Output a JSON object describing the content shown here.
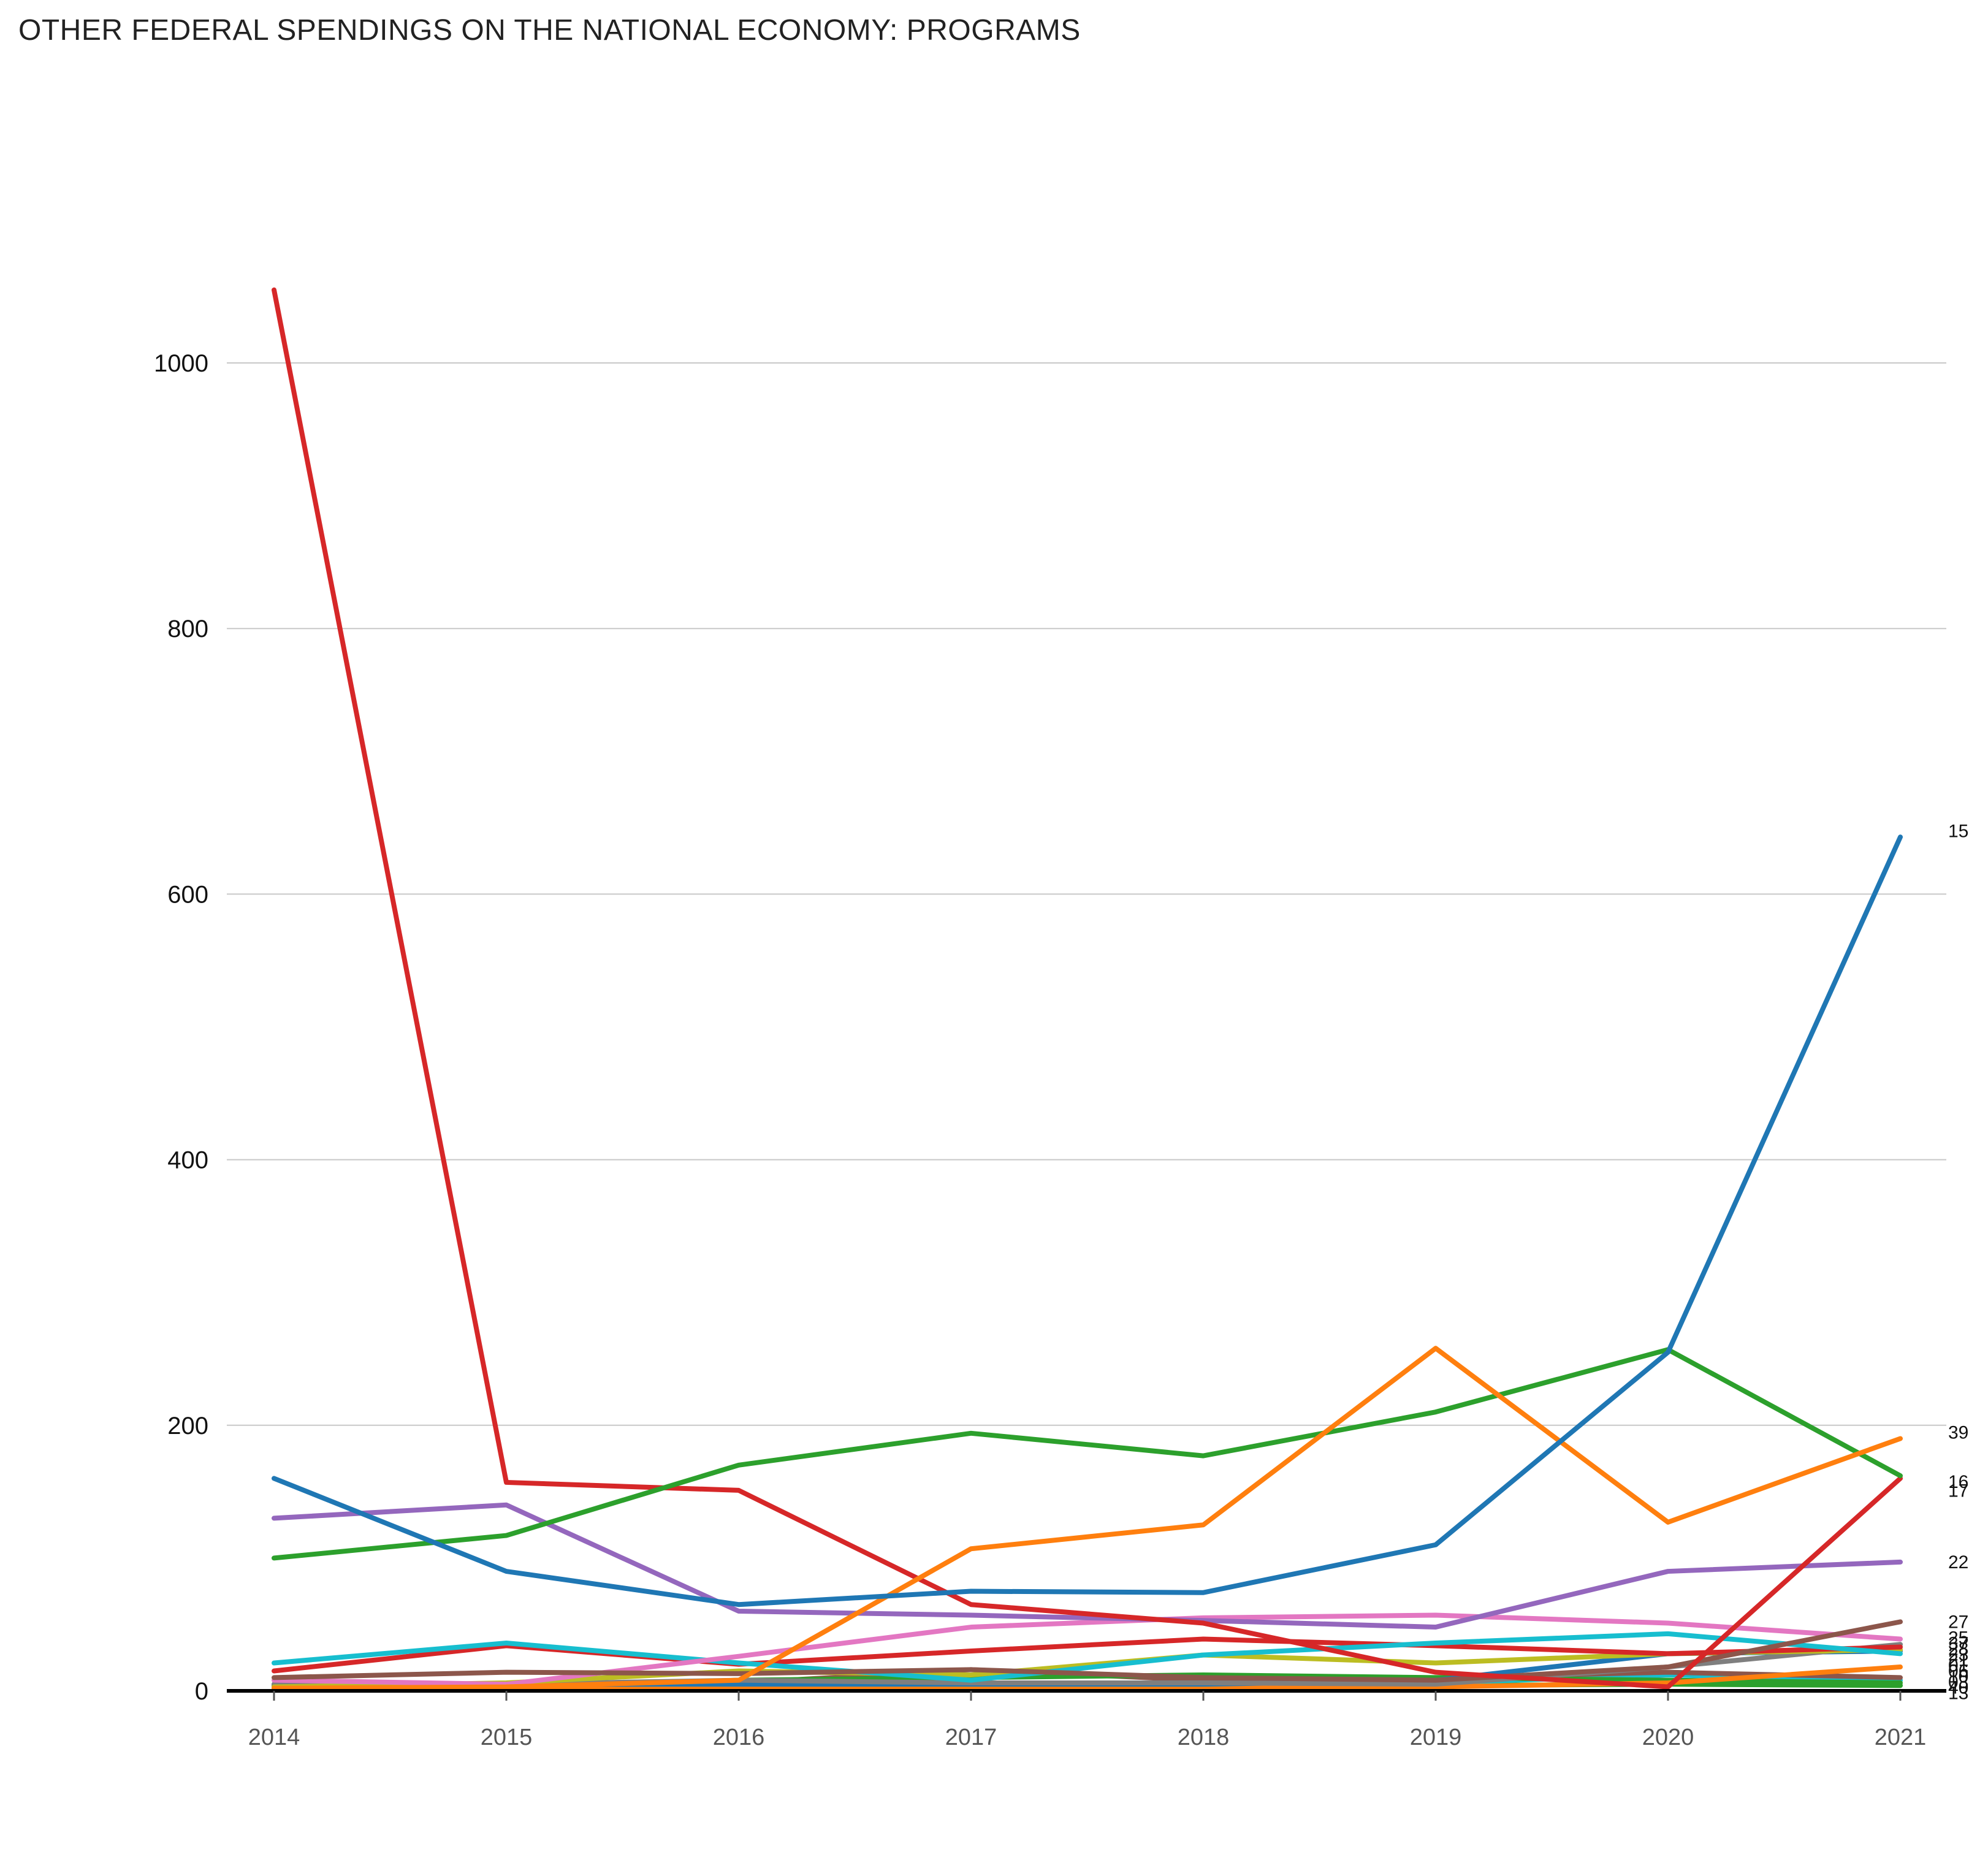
{
  "chart_data": {
    "type": "line",
    "title": "OTHER FEDERAL SPENDINGS ON THE NATIONAL ECONOMY: PROGRAMS",
    "xlabel": "",
    "ylabel": "",
    "x": [
      "2014",
      "2015",
      "2016",
      "2017",
      "2018",
      "2019",
      "2020",
      "2021"
    ],
    "ylim": [
      0,
      1070
    ],
    "yticks": [
      0,
      200,
      400,
      600,
      800,
      1000
    ],
    "grid": true,
    "series": [
      {
        "name": "15",
        "color": "#1f77b4",
        "values": [
          160,
          90,
          65,
          75,
          74,
          110,
          255,
          643
        ]
      },
      {
        "name": "39",
        "color": "#ff7f0e",
        "values": [
          2,
          3,
          8,
          107,
          125,
          258,
          127,
          190
        ]
      },
      {
        "name": "16",
        "color": "#2ca02c",
        "values": [
          100,
          117,
          170,
          194,
          177,
          210,
          257,
          162
        ]
      },
      {
        "name": "17",
        "color": "#d62728",
        "values": [
          1055,
          157,
          151,
          65,
          51,
          14,
          3,
          160
        ]
      },
      {
        "name": "22",
        "color": "#9467bd",
        "values": [
          130,
          140,
          60,
          57,
          53,
          48,
          90,
          97
        ]
      },
      {
        "name": "27",
        "color": "#8c564b",
        "values": [
          10,
          14,
          13,
          16,
          10,
          8,
          18,
          52
        ]
      },
      {
        "name": "",
        "color": "#e377c2",
        "values": [
          8,
          5,
          26,
          48,
          55,
          57,
          51,
          39
        ]
      },
      {
        "name": "",
        "color": "#17becf",
        "values": [
          21,
          36,
          21,
          8,
          27,
          36,
          43,
          28
        ]
      },
      {
        "name": "",
        "color": "#d62728",
        "values": [
          15,
          34,
          20,
          30,
          39,
          34,
          28,
          33
        ]
      },
      {
        "name": "",
        "color": "#bcbd22",
        "values": [
          3,
          6,
          15,
          12,
          27,
          21,
          28,
          31
        ]
      },
      {
        "name": "",
        "color": "#7f7f7f",
        "values": [
          5,
          5,
          8,
          6,
          6,
          5,
          18,
          35
        ]
      },
      {
        "name": "",
        "color": "#1f77b4",
        "values": [
          5,
          5,
          5,
          5,
          5,
          8,
          28,
          30
        ]
      },
      {
        "name": "",
        "color": "#ff7f0e",
        "values": [
          2,
          2,
          3,
          3,
          3,
          3,
          6,
          18
        ]
      },
      {
        "name": "",
        "color": "#2ca02c",
        "values": [
          3,
          3,
          8,
          10,
          12,
          10,
          8,
          6
        ]
      },
      {
        "name": "",
        "color": "#8c564b",
        "values": [
          4,
          4,
          6,
          16,
          8,
          10,
          14,
          10
        ]
      },
      {
        "name": "",
        "color": "#17becf",
        "values": [
          3,
          3,
          4,
          4,
          5,
          6,
          12,
          8
        ]
      },
      {
        "name": "",
        "color": "#2ca02c",
        "values": [
          2,
          2,
          3,
          3,
          4,
          4,
          5,
          4
        ]
      }
    ],
    "end_labels": [
      "15",
      "39",
      "16",
      "17",
      "22",
      "27",
      "25",
      "37",
      "28",
      "23",
      "21",
      "01",
      "06",
      "10",
      "03",
      "40",
      "13"
    ]
  }
}
